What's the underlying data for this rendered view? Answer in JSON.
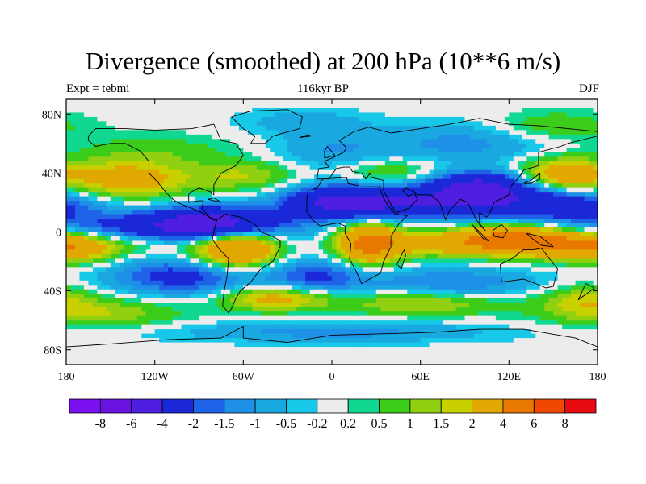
{
  "chart_data": {
    "type": "heatmap",
    "title": "Divergence (smoothed) at 200 hPa (10**6 m/s)",
    "left_label": "Expt = tebmi",
    "center_label": "116kyr BP",
    "right_label": "DJF",
    "x_ticks": [
      "180",
      "120W",
      "60W",
      "0",
      "60E",
      "120E",
      "180"
    ],
    "x_tick_values": [
      -180,
      -120,
      -60,
      0,
      60,
      120,
      180
    ],
    "y_ticks": [
      "80N",
      "40N",
      "0",
      "40S",
      "80S"
    ],
    "y_tick_values": [
      80,
      40,
      0,
      -40,
      -80
    ],
    "xlim": [
      -180,
      180
    ],
    "ylim": [
      -90,
      90
    ],
    "colorbar": {
      "colors": [
        "#7a10f0",
        "#6a12e0",
        "#4f1ee0",
        "#1a28d8",
        "#1e62e8",
        "#1e90e8",
        "#1aa8e0",
        "#18c8e8",
        "#ececec",
        "#10d890",
        "#3ccc1a",
        "#90d010",
        "#c8d000",
        "#e0a800",
        "#e87800",
        "#f04800",
        "#e80a10"
      ],
      "labels": [
        "-8",
        "-6",
        "-4",
        "-2",
        "-1.5",
        "-1",
        "-0.5",
        "-0.2",
        "0.2",
        "0.5",
        "1",
        "1.5",
        "2",
        "4",
        "6",
        "8"
      ]
    },
    "features": [
      {
        "lon": -140,
        "lat": 2,
        "value": -2.2,
        "sx": 70,
        "sy": 9
      },
      {
        "lon": -80,
        "lat": 5,
        "value": -5,
        "sx": 30,
        "sy": 8
      },
      {
        "lon": 0,
        "lat": 20,
        "value": -3.5,
        "sx": 25,
        "sy": 8
      },
      {
        "lon": 40,
        "lat": 20,
        "value": -3,
        "sx": 30,
        "sy": 8
      },
      {
        "lon": 100,
        "lat": 22,
        "value": -3.5,
        "sx": 30,
        "sy": 8
      },
      {
        "lon": 160,
        "lat": 20,
        "value": -2.5,
        "sx": 30,
        "sy": 8
      },
      {
        "lon": 100,
        "lat": 33,
        "value": -3,
        "sx": 25,
        "sy": 6
      },
      {
        "lon": -140,
        "lat": 35,
        "value": 2.8,
        "sx": 30,
        "sy": 9
      },
      {
        "lon": 155,
        "lat": 38,
        "value": 3,
        "sx": 20,
        "sy": 8
      },
      {
        "lon": -60,
        "lat": 38,
        "value": 1.5,
        "sx": 25,
        "sy": 7
      },
      {
        "lon": 40,
        "lat": 40,
        "value": 1.2,
        "sx": 25,
        "sy": 7
      },
      {
        "lon": -120,
        "lat": 55,
        "value": 0.8,
        "sx": 40,
        "sy": 8
      },
      {
        "lon": 0,
        "lat": 55,
        "value": -1,
        "sx": 30,
        "sy": 10
      },
      {
        "lon": 90,
        "lat": 60,
        "value": -1.2,
        "sx": 40,
        "sy": 10
      },
      {
        "lon": 120,
        "lat": -5,
        "value": 5,
        "sx": 25,
        "sy": 7
      },
      {
        "lon": 160,
        "lat": -8,
        "value": 3.5,
        "sx": 22,
        "sy": 7
      },
      {
        "lon": 70,
        "lat": -8,
        "value": 2.5,
        "sx": 30,
        "sy": 6
      },
      {
        "lon": -65,
        "lat": -10,
        "value": 5,
        "sx": 20,
        "sy": 10
      },
      {
        "lon": 25,
        "lat": -8,
        "value": 4.5,
        "sx": 15,
        "sy": 10
      },
      {
        "lon": -170,
        "lat": -10,
        "value": 3,
        "sx": 20,
        "sy": 7
      },
      {
        "lon": -120,
        "lat": -8,
        "value": 1.3,
        "sx": 25,
        "sy": 6
      },
      {
        "lon": -100,
        "lat": -30,
        "value": -2.5,
        "sx": 35,
        "sy": 9
      },
      {
        "lon": -10,
        "lat": -30,
        "value": -2,
        "sx": 25,
        "sy": 8
      },
      {
        "lon": 80,
        "lat": -35,
        "value": -1.5,
        "sx": 45,
        "sy": 8
      },
      {
        "lon": -160,
        "lat": -55,
        "value": 1.5,
        "sx": 40,
        "sy": 7
      },
      {
        "lon": -40,
        "lat": -45,
        "value": 2.5,
        "sx": 25,
        "sy": 6
      },
      {
        "lon": 60,
        "lat": -48,
        "value": 1.8,
        "sx": 40,
        "sy": 6
      },
      {
        "lon": 0,
        "lat": -68,
        "value": -1.2,
        "sx": 80,
        "sy": 5
      },
      {
        "lon": 170,
        "lat": -45,
        "value": 1.5,
        "sx": 20,
        "sy": 7
      },
      {
        "lon": 150,
        "lat": 72,
        "value": 1,
        "sx": 30,
        "sy": 7
      },
      {
        "lon": -20,
        "lat": 75,
        "value": -0.8,
        "sx": 30,
        "sy": 6
      }
    ],
    "coastlines": {
      "north_america": [
        [
          -165,
          65
        ],
        [
          -160,
          70
        ],
        [
          -140,
          70
        ],
        [
          -120,
          69
        ],
        [
          -95,
          70
        ],
        [
          -80,
          73
        ],
        [
          -75,
          62
        ],
        [
          -65,
          60
        ],
        [
          -60,
          52
        ],
        [
          -65,
          45
        ],
        [
          -75,
          40
        ],
        [
          -80,
          32
        ],
        [
          -80,
          25
        ],
        [
          -82,
          27
        ],
        [
          -90,
          30
        ],
        [
          -97,
          26
        ],
        [
          -97,
          20
        ],
        [
          -90,
          21
        ],
        [
          -87,
          21
        ],
        [
          -88,
          16
        ],
        [
          -83,
          10
        ],
        [
          -78,
          8
        ],
        [
          -80,
          8
        ],
        [
          -88,
          13
        ],
        [
          -95,
          16
        ],
        [
          -105,
          20
        ],
        [
          -110,
          24
        ],
        [
          -115,
          30
        ],
        [
          -118,
          34
        ],
        [
          -124,
          40
        ],
        [
          -124,
          48
        ],
        [
          -130,
          55
        ],
        [
          -140,
          60
        ],
        [
          -150,
          60
        ],
        [
          -160,
          58
        ],
        [
          -165,
          62
        ],
        [
          -165,
          65
        ]
      ],
      "south_america": [
        [
          -78,
          8
        ],
        [
          -72,
          12
        ],
        [
          -62,
          10
        ],
        [
          -52,
          5
        ],
        [
          -48,
          0
        ],
        [
          -40,
          -3
        ],
        [
          -35,
          -6
        ],
        [
          -35,
          -10
        ],
        [
          -40,
          -20
        ],
        [
          -48,
          -25
        ],
        [
          -55,
          -34
        ],
        [
          -62,
          -40
        ],
        [
          -65,
          -45
        ],
        [
          -68,
          -52
        ],
        [
          -70,
          -55
        ],
        [
          -74,
          -50
        ],
        [
          -73,
          -40
        ],
        [
          -71,
          -30
        ],
        [
          -70,
          -18
        ],
        [
          -76,
          -12
        ],
        [
          -81,
          -5
        ],
        [
          -80,
          0
        ],
        [
          -78,
          8
        ]
      ],
      "greenland": [
        [
          -55,
          60
        ],
        [
          -45,
          60
        ],
        [
          -40,
          65
        ],
        [
          -22,
          70
        ],
        [
          -20,
          78
        ],
        [
          -30,
          83
        ],
        [
          -55,
          82
        ],
        [
          -68,
          78
        ],
        [
          -60,
          70
        ],
        [
          -52,
          65
        ],
        [
          -55,
          60
        ]
      ],
      "africa": [
        [
          -17,
          21
        ],
        [
          -16,
          28
        ],
        [
          -10,
          30
        ],
        [
          -6,
          36
        ],
        [
          10,
          37
        ],
        [
          11,
          33
        ],
        [
          20,
          31
        ],
        [
          32,
          31
        ],
        [
          35,
          23
        ],
        [
          38,
          18
        ],
        [
          43,
          12
        ],
        [
          51,
          11
        ],
        [
          45,
          5
        ],
        [
          40,
          -3
        ],
        [
          40,
          -10
        ],
        [
          35,
          -20
        ],
        [
          33,
          -28
        ],
        [
          20,
          -35
        ],
        [
          18,
          -30
        ],
        [
          12,
          -18
        ],
        [
          13,
          -8
        ],
        [
          9,
          -1
        ],
        [
          9,
          4
        ],
        [
          4,
          6
        ],
        [
          -8,
          4
        ],
        [
          -13,
          8
        ],
        [
          -17,
          14
        ],
        [
          -17,
          21
        ]
      ],
      "eurasia": [
        [
          -10,
          36
        ],
        [
          -9,
          43
        ],
        [
          -2,
          44
        ],
        [
          -5,
          48
        ],
        [
          2,
          51
        ],
        [
          8,
          54
        ],
        [
          10,
          57
        ],
        [
          5,
          62
        ],
        [
          15,
          68
        ],
        [
          25,
          71
        ],
        [
          40,
          67
        ],
        [
          60,
          70
        ],
        [
          80,
          73
        ],
        [
          100,
          77
        ],
        [
          120,
          73
        ],
        [
          140,
          72
        ],
        [
          160,
          70
        ],
        [
          180,
          68
        ],
        [
          180,
          65
        ],
        [
          160,
          60
        ],
        [
          155,
          58
        ],
        [
          140,
          54
        ],
        [
          140,
          45
        ],
        [
          130,
          42
        ],
        [
          126,
          36
        ],
        [
          121,
          31
        ],
        [
          120,
          25
        ],
        [
          110,
          20
        ],
        [
          108,
          15
        ],
        [
          105,
          10
        ],
        [
          100,
          13
        ],
        [
          100,
          5
        ],
        [
          104,
          1
        ],
        [
          98,
          8
        ],
        [
          92,
          20
        ],
        [
          87,
          22
        ],
        [
          80,
          15
        ],
        [
          77,
          8
        ],
        [
          73,
          20
        ],
        [
          67,
          25
        ],
        [
          58,
          25
        ],
        [
          56,
          27
        ],
        [
          50,
          30
        ],
        [
          48,
          28
        ],
        [
          52,
          24
        ],
        [
          56,
          26
        ],
        [
          58,
          22
        ],
        [
          52,
          16
        ],
        [
          44,
          13
        ],
        [
          42,
          15
        ],
        [
          35,
          28
        ],
        [
          35,
          35
        ],
        [
          27,
          37
        ],
        [
          26,
          40
        ],
        [
          23,
          36
        ],
        [
          20,
          40
        ],
        [
          14,
          41
        ],
        [
          12,
          44
        ],
        [
          8,
          44
        ],
        [
          3,
          43
        ],
        [
          -2,
          36
        ],
        [
          -10,
          36
        ]
      ],
      "australia": [
        [
          114,
          -22
        ],
        [
          122,
          -18
        ],
        [
          130,
          -12
        ],
        [
          137,
          -12
        ],
        [
          142,
          -11
        ],
        [
          145,
          -15
        ],
        [
          153,
          -25
        ],
        [
          150,
          -37
        ],
        [
          145,
          -38
        ],
        [
          138,
          -35
        ],
        [
          130,
          -32
        ],
        [
          115,
          -34
        ],
        [
          114,
          -22
        ]
      ],
      "antarctica": [
        [
          -180,
          -78
        ],
        [
          -150,
          -76
        ],
        [
          -110,
          -73
        ],
        [
          -75,
          -72
        ],
        [
          -60,
          -64
        ],
        [
          -60,
          -72
        ],
        [
          -30,
          -75
        ],
        [
          0,
          -70
        ],
        [
          40,
          -69
        ],
        [
          70,
          -68
        ],
        [
          100,
          -66
        ],
        [
          130,
          -66
        ],
        [
          165,
          -72
        ],
        [
          180,
          -78
        ]
      ],
      "islands": [
        [
          [
            95,
            5
          ],
          [
            100,
            0
          ],
          [
            106,
            -6
          ],
          [
            103,
            -5
          ],
          [
            98,
            1
          ],
          [
            95,
            5
          ]
        ],
        [
          [
            109,
            1
          ],
          [
            115,
            5
          ],
          [
            119,
            1
          ],
          [
            116,
            -4
          ],
          [
            110,
            -3
          ],
          [
            109,
            1
          ]
        ],
        [
          [
            132,
            -1
          ],
          [
            141,
            -3
          ],
          [
            150,
            -10
          ],
          [
            142,
            -9
          ],
          [
            135,
            -4
          ],
          [
            132,
            -1
          ]
        ],
        [
          [
            49,
            -12
          ],
          [
            50,
            -16
          ],
          [
            47,
            -25
          ],
          [
            44,
            -22
          ],
          [
            49,
            -12
          ]
        ],
        [
          [
            130,
            33
          ],
          [
            135,
            35
          ],
          [
            141,
            40
          ],
          [
            141,
            36
          ],
          [
            135,
            33
          ],
          [
            130,
            33
          ]
        ],
        [
          [
            -5,
            50
          ],
          [
            2,
            52
          ],
          [
            -3,
            58
          ],
          [
            -5,
            55
          ],
          [
            -5,
            50
          ]
        ],
        [
          [
            -22,
            64
          ],
          [
            -14,
            65
          ],
          [
            -16,
            66
          ],
          [
            -22,
            64
          ]
        ],
        [
          [
            172,
            -35
          ],
          [
            178,
            -38
          ],
          [
            174,
            -41
          ],
          [
            167,
            -46
          ],
          [
            172,
            -35
          ]
        ],
        [
          [
            -84,
            22
          ],
          [
            -75,
            20
          ],
          [
            -80,
            23
          ],
          [
            -84,
            22
          ]
        ]
      ]
    }
  }
}
